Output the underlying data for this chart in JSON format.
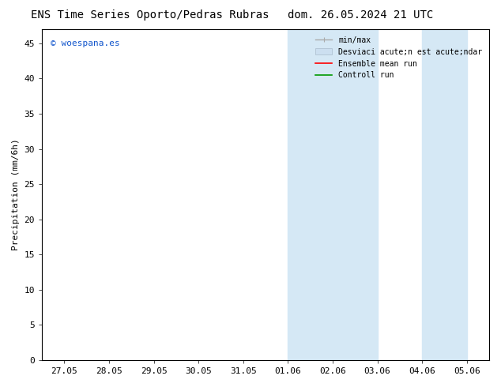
{
  "title_left": "ENS Time Series Oporto/Pedras Rubras",
  "title_right": "dom. 26.05.2024 21 UTC",
  "ylabel": "Precipitation (mm/6h)",
  "watermark": "© woespana.es",
  "watermark_color": "#1155cc",
  "ylim": [
    0,
    47
  ],
  "yticks": [
    0,
    5,
    10,
    15,
    20,
    25,
    30,
    35,
    40,
    45
  ],
  "xtick_labels": [
    "27.05",
    "28.05",
    "29.05",
    "30.05",
    "31.05",
    "01.06",
    "02.06",
    "03.06",
    "04.06",
    "05.06"
  ],
  "xtick_positions": [
    0,
    1,
    2,
    3,
    4,
    5,
    6,
    7,
    8,
    9
  ],
  "shaded_bands": [
    {
      "xmin": 5.0,
      "xmax": 6.0,
      "color": "#d5e8f5"
    },
    {
      "xmin": 6.0,
      "xmax": 7.0,
      "color": "#d5e8f5"
    },
    {
      "xmin": 8.0,
      "xmax": 8.5,
      "color": "#d5e8f5"
    },
    {
      "xmin": 8.5,
      "xmax": 9.0,
      "color": "#d5e8f5"
    }
  ],
  "bg_color": "#ffffff",
  "band_color": "#d5e8f5",
  "band1_xmin": 5.0,
  "band1_xmax": 7.0,
  "band2_xmin": 8.0,
  "band2_xmax": 9.0,
  "title_fontsize": 10,
  "tick_fontsize": 8,
  "ylabel_fontsize": 8,
  "watermark_fontsize": 8,
  "legend_fontsize": 7,
  "legend_label_minmax": "min/max",
  "legend_label_std": "Desviaci acute;n est acute;ndar",
  "legend_label_ensemble": "Ensemble mean run",
  "legend_label_control": "Controll run",
  "minmax_color": "#aaaaaa",
  "std_color": "#ccdff0",
  "ensemble_color": "#ff0000",
  "control_color": "#009900"
}
